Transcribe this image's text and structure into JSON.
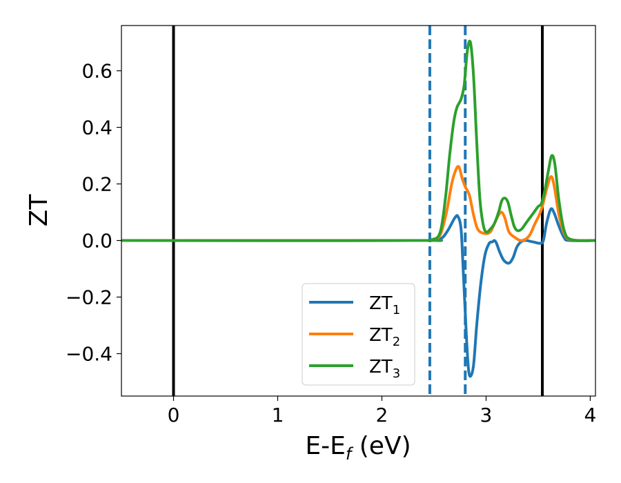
{
  "chart_data": {
    "type": "line",
    "xlabel": "E-E",
    "xlabel_sub": "f",
    "xlabel_unit": " (eV)",
    "ylabel": "ZT",
    "xlim": [
      -0.5,
      4.05
    ],
    "ylim": [
      -0.55,
      0.76
    ],
    "x_ticks": [
      0,
      1,
      2,
      3,
      4
    ],
    "x_tick_labels": [
      "0",
      "1",
      "2",
      "3",
      "4"
    ],
    "y_ticks": [
      -0.4,
      -0.2,
      0.0,
      0.2,
      0.4,
      0.6
    ],
    "y_tick_labels": [
      "−0.4",
      "−0.2",
      "0.0",
      "0.2",
      "0.4",
      "0.6"
    ],
    "grid": false,
    "legend_position": "lower-center",
    "vertical_lines": [
      {
        "x": 0.0,
        "style": "solid",
        "color": "#000000"
      },
      {
        "x": 3.54,
        "style": "solid",
        "color": "#000000"
      },
      {
        "x": 2.46,
        "style": "dashed",
        "color": "#1f77b4"
      },
      {
        "x": 2.8,
        "style": "dashed",
        "color": "#1f77b4"
      }
    ],
    "series": [
      {
        "name": "ZT",
        "name_sub": "1",
        "color": "#1f77b4",
        "points": [
          [
            -0.5,
            0
          ],
          [
            2.3,
            0
          ],
          [
            2.5,
            0.002
          ],
          [
            2.58,
            0.01
          ],
          [
            2.64,
            0.04
          ],
          [
            2.7,
            0.08
          ],
          [
            2.73,
            0.085
          ],
          [
            2.76,
            0.04
          ],
          [
            2.78,
            -0.1
          ],
          [
            2.81,
            -0.33
          ],
          [
            2.83,
            -0.45
          ],
          [
            2.85,
            -0.48
          ],
          [
            2.88,
            -0.44
          ],
          [
            2.91,
            -0.3
          ],
          [
            2.95,
            -0.15
          ],
          [
            2.99,
            -0.05
          ],
          [
            3.03,
            -0.01
          ],
          [
            3.06,
            -0.005
          ],
          [
            3.08,
            0.0
          ],
          [
            3.1,
            -0.01
          ],
          [
            3.13,
            -0.04
          ],
          [
            3.17,
            -0.07
          ],
          [
            3.22,
            -0.08
          ],
          [
            3.26,
            -0.06
          ],
          [
            3.3,
            -0.02
          ],
          [
            3.36,
            0.0
          ],
          [
            3.45,
            -0.005
          ],
          [
            3.52,
            -0.01
          ],
          [
            3.55,
            0.0
          ],
          [
            3.58,
            0.06
          ],
          [
            3.62,
            0.11
          ],
          [
            3.65,
            0.1
          ],
          [
            3.7,
            0.05
          ],
          [
            3.75,
            0.01
          ],
          [
            3.8,
            0.0
          ],
          [
            4.05,
            0
          ]
        ]
      },
      {
        "name": "ZT",
        "name_sub": "2",
        "color": "#ff7f0e",
        "points": [
          [
            -0.5,
            0
          ],
          [
            2.3,
            0
          ],
          [
            2.48,
            0.002
          ],
          [
            2.56,
            0.02
          ],
          [
            2.62,
            0.1
          ],
          [
            2.67,
            0.2
          ],
          [
            2.71,
            0.25
          ],
          [
            2.74,
            0.26
          ],
          [
            2.77,
            0.22
          ],
          [
            2.8,
            0.19
          ],
          [
            2.84,
            0.16
          ],
          [
            2.88,
            0.09
          ],
          [
            2.92,
            0.04
          ],
          [
            2.98,
            0.025
          ],
          [
            3.04,
            0.03
          ],
          [
            3.08,
            0.06
          ],
          [
            3.12,
            0.09
          ],
          [
            3.15,
            0.1
          ],
          [
            3.18,
            0.08
          ],
          [
            3.22,
            0.03
          ],
          [
            3.28,
            0.01
          ],
          [
            3.33,
            0.0
          ],
          [
            3.38,
            0.005
          ],
          [
            3.42,
            0.02
          ],
          [
            3.47,
            0.06
          ],
          [
            3.51,
            0.09
          ],
          [
            3.54,
            0.12
          ],
          [
            3.58,
            0.18
          ],
          [
            3.62,
            0.225
          ],
          [
            3.65,
            0.2
          ],
          [
            3.7,
            0.09
          ],
          [
            3.75,
            0.025
          ],
          [
            3.82,
            0.002
          ],
          [
            4.05,
            0
          ]
        ]
      },
      {
        "name": "ZT",
        "name_sub": "3",
        "color": "#2ca02c",
        "points": [
          [
            -0.5,
            0
          ],
          [
            2.3,
            0
          ],
          [
            2.48,
            0.003
          ],
          [
            2.56,
            0.03
          ],
          [
            2.61,
            0.15
          ],
          [
            2.65,
            0.3
          ],
          [
            2.69,
            0.42
          ],
          [
            2.72,
            0.47
          ],
          [
            2.76,
            0.5
          ],
          [
            2.79,
            0.55
          ],
          [
            2.82,
            0.67
          ],
          [
            2.85,
            0.7
          ],
          [
            2.88,
            0.58
          ],
          [
            2.91,
            0.35
          ],
          [
            2.94,
            0.15
          ],
          [
            2.97,
            0.06
          ],
          [
            3.0,
            0.03
          ],
          [
            3.04,
            0.04
          ],
          [
            3.08,
            0.06
          ],
          [
            3.12,
            0.1
          ],
          [
            3.15,
            0.14
          ],
          [
            3.18,
            0.15
          ],
          [
            3.21,
            0.135
          ],
          [
            3.24,
            0.09
          ],
          [
            3.27,
            0.05
          ],
          [
            3.3,
            0.035
          ],
          [
            3.34,
            0.04
          ],
          [
            3.38,
            0.06
          ],
          [
            3.42,
            0.08
          ],
          [
            3.46,
            0.1
          ],
          [
            3.5,
            0.12
          ],
          [
            3.53,
            0.13
          ],
          [
            3.56,
            0.17
          ],
          [
            3.6,
            0.25
          ],
          [
            3.63,
            0.3
          ],
          [
            3.66,
            0.27
          ],
          [
            3.7,
            0.14
          ],
          [
            3.75,
            0.035
          ],
          [
            3.82,
            0.003
          ],
          [
            4.05,
            0
          ]
        ]
      }
    ]
  }
}
